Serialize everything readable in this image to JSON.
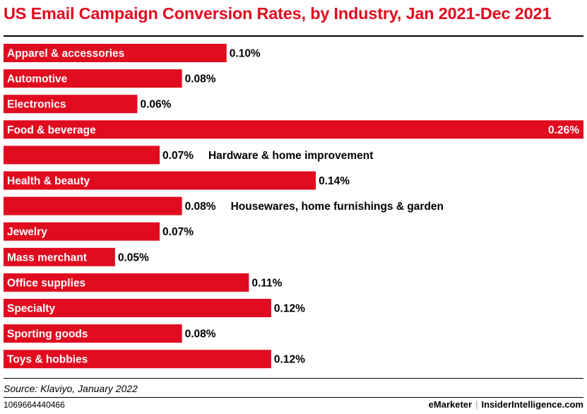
{
  "title": "US Email Campaign Conversion Rates, by Industry, Jan 2021-Dec 2021",
  "source": "Source: Klaviyo, January 2022",
  "chart_id": "1069664440466",
  "footer": {
    "brand_left": "eMarketer",
    "separator": "|",
    "brand_right": "InsiderIntelligence.com"
  },
  "colors": {
    "bar": "#e10b1f",
    "title": "#e10b1f",
    "label_inside": "#ffffff",
    "label_outside": "#000000"
  },
  "chart_data": {
    "type": "bar",
    "orientation": "horizontal",
    "title": "US Email Campaign Conversion Rates, by Industry, Jan 2021-Dec 2021",
    "categories": [
      "Apparel & accessories",
      "Automotive",
      "Electronics",
      "Food & beverage",
      "Hardware & home improvement",
      "Health & beauty",
      "Housewares, home furnishings & garden",
      "Jewelry",
      "Mass merchant",
      "Office supplies",
      "Specialty",
      "Sporting goods",
      "Toys & hobbies"
    ],
    "values": [
      0.1,
      0.08,
      0.06,
      0.26,
      0.07,
      0.14,
      0.08,
      0.07,
      0.05,
      0.11,
      0.12,
      0.08,
      0.12
    ],
    "value_labels": [
      "0.10%",
      "0.08%",
      "0.06%",
      "0.26%",
      "0.07%",
      "0.14%",
      "0.08%",
      "0.07%",
      "0.05%",
      "0.11%",
      "0.12%",
      "0.08%",
      "0.12%"
    ],
    "unit": "%",
    "xlim": [
      0,
      0.26
    ],
    "grid": false,
    "legend": "none"
  }
}
